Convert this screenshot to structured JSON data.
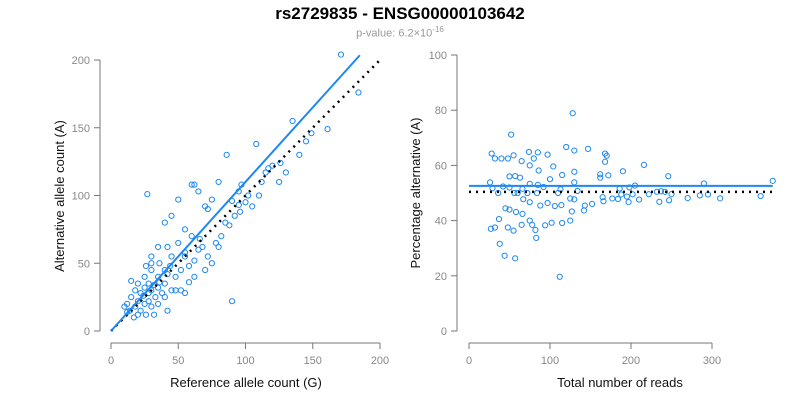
{
  "chart_data": [
    {
      "type": "scatter",
      "title": "rs2729835 - ENSG00000103642",
      "subtitle_prefix": "p-value: 6.2×10",
      "subtitle_exp": "-16",
      "xlabel": "Reference allele count (G)",
      "ylabel": "Alternative allele count (A)",
      "xlim": [
        0,
        200
      ],
      "ylim": [
        0,
        200
      ],
      "xticks": [
        "0",
        "50",
        "100",
        "150",
        "200"
      ],
      "yticks": [
        "0",
        "50",
        "100",
        "150",
        "200"
      ],
      "fit_line": {
        "slope": 1.1,
        "x_end": 185,
        "color": "#1e88f0"
      },
      "reference_line": {
        "slope": 1,
        "x_end": 200,
        "style": "dotted",
        "color": "#000000"
      },
      "point_color": "#1e88f0",
      "points": [
        [
          171,
          204
        ],
        [
          184,
          176
        ],
        [
          161,
          149
        ],
        [
          135,
          155
        ],
        [
          149,
          146
        ],
        [
          108,
          138
        ],
        [
          120,
          122
        ],
        [
          126,
          124
        ],
        [
          130,
          117
        ],
        [
          90,
          22
        ],
        [
          27,
          101
        ],
        [
          86,
          130
        ],
        [
          115,
          117
        ],
        [
          117,
          120
        ],
        [
          95,
          103
        ],
        [
          97,
          108
        ],
        [
          102,
          100
        ],
        [
          110,
          100
        ],
        [
          65,
          103
        ],
        [
          60,
          108
        ],
        [
          62,
          108
        ],
        [
          80,
          110
        ],
        [
          75,
          97
        ],
        [
          50,
          97
        ],
        [
          95,
          93
        ],
        [
          90,
          96
        ],
        [
          88,
          78
        ],
        [
          85,
          80
        ],
        [
          72,
          90
        ],
        [
          70,
          92
        ],
        [
          45,
          85
        ],
        [
          40,
          80
        ],
        [
          55,
          75
        ],
        [
          60,
          70
        ],
        [
          66,
          68
        ],
        [
          50,
          65
        ],
        [
          42,
          62
        ],
        [
          35,
          62
        ],
        [
          30,
          55
        ],
        [
          45,
          55
        ],
        [
          55,
          58
        ],
        [
          62,
          52
        ],
        [
          70,
          45
        ],
        [
          75,
          50
        ],
        [
          52,
          45
        ],
        [
          48,
          40
        ],
        [
          40,
          45
        ],
        [
          35,
          40
        ],
        [
          30,
          45
        ],
        [
          25,
          40
        ],
        [
          28,
          35
        ],
        [
          20,
          35
        ],
        [
          15,
          37
        ],
        [
          18,
          30
        ],
        [
          22,
          28
        ],
        [
          25,
          32
        ],
        [
          30,
          30
        ],
        [
          33,
          25
        ],
        [
          35,
          32
        ],
        [
          40,
          35
        ],
        [
          38,
          28
        ],
        [
          28,
          22
        ],
        [
          20,
          22
        ],
        [
          15,
          25
        ],
        [
          12,
          20
        ],
        [
          14,
          15
        ],
        [
          18,
          18
        ],
        [
          22,
          15
        ],
        [
          25,
          20
        ],
        [
          30,
          18
        ],
        [
          32,
          12
        ],
        [
          35,
          20
        ],
        [
          40,
          25
        ],
        [
          45,
          30
        ],
        [
          26,
          12
        ],
        [
          20,
          12
        ],
        [
          17,
          10
        ],
        [
          12,
          14
        ],
        [
          10,
          18
        ],
        [
          24,
          26
        ],
        [
          28,
          28
        ],
        [
          32,
          34
        ],
        [
          36,
          36
        ],
        [
          42,
          42
        ],
        [
          55,
          55
        ],
        [
          58,
          48
        ],
        [
          65,
          60
        ],
        [
          68,
          62
        ],
        [
          78,
          65
        ],
        [
          82,
          70
        ],
        [
          92,
          85
        ],
        [
          100,
          95
        ],
        [
          105,
          92
        ],
        [
          58,
          36
        ],
        [
          52,
          30
        ],
        [
          48,
          30
        ],
        [
          42,
          15
        ],
        [
          55,
          28
        ],
        [
          30,
          50
        ],
        [
          26,
          48
        ],
        [
          36,
          50
        ],
        [
          44,
          48
        ],
        [
          62,
          40
        ],
        [
          72,
          55
        ],
        [
          80,
          62
        ],
        [
          112,
          110
        ],
        [
          125,
          110
        ],
        [
          140,
          130
        ],
        [
          145,
          140
        ],
        [
          96,
          88
        ]
      ]
    },
    {
      "type": "scatter",
      "xlabel": "Total number of reads",
      "ylabel": "Percentage alternative (A)",
      "xlim": [
        0,
        300
      ],
      "ylim": [
        0,
        100
      ],
      "xticks": [
        "0",
        "100",
        "200",
        "300"
      ],
      "yticks": [
        "0",
        "20",
        "40",
        "60",
        "80",
        "100"
      ],
      "derived_from": "points of first chart: total = ref + alt, percentage = 100*alt/total",
      "fit_line": {
        "y": 52.6,
        "x_end": 375,
        "color": "#1e88f0"
      },
      "reference_line": {
        "y": 50.4,
        "x_end": 375,
        "style": "dotted",
        "color": "#000000"
      }
    }
  ]
}
